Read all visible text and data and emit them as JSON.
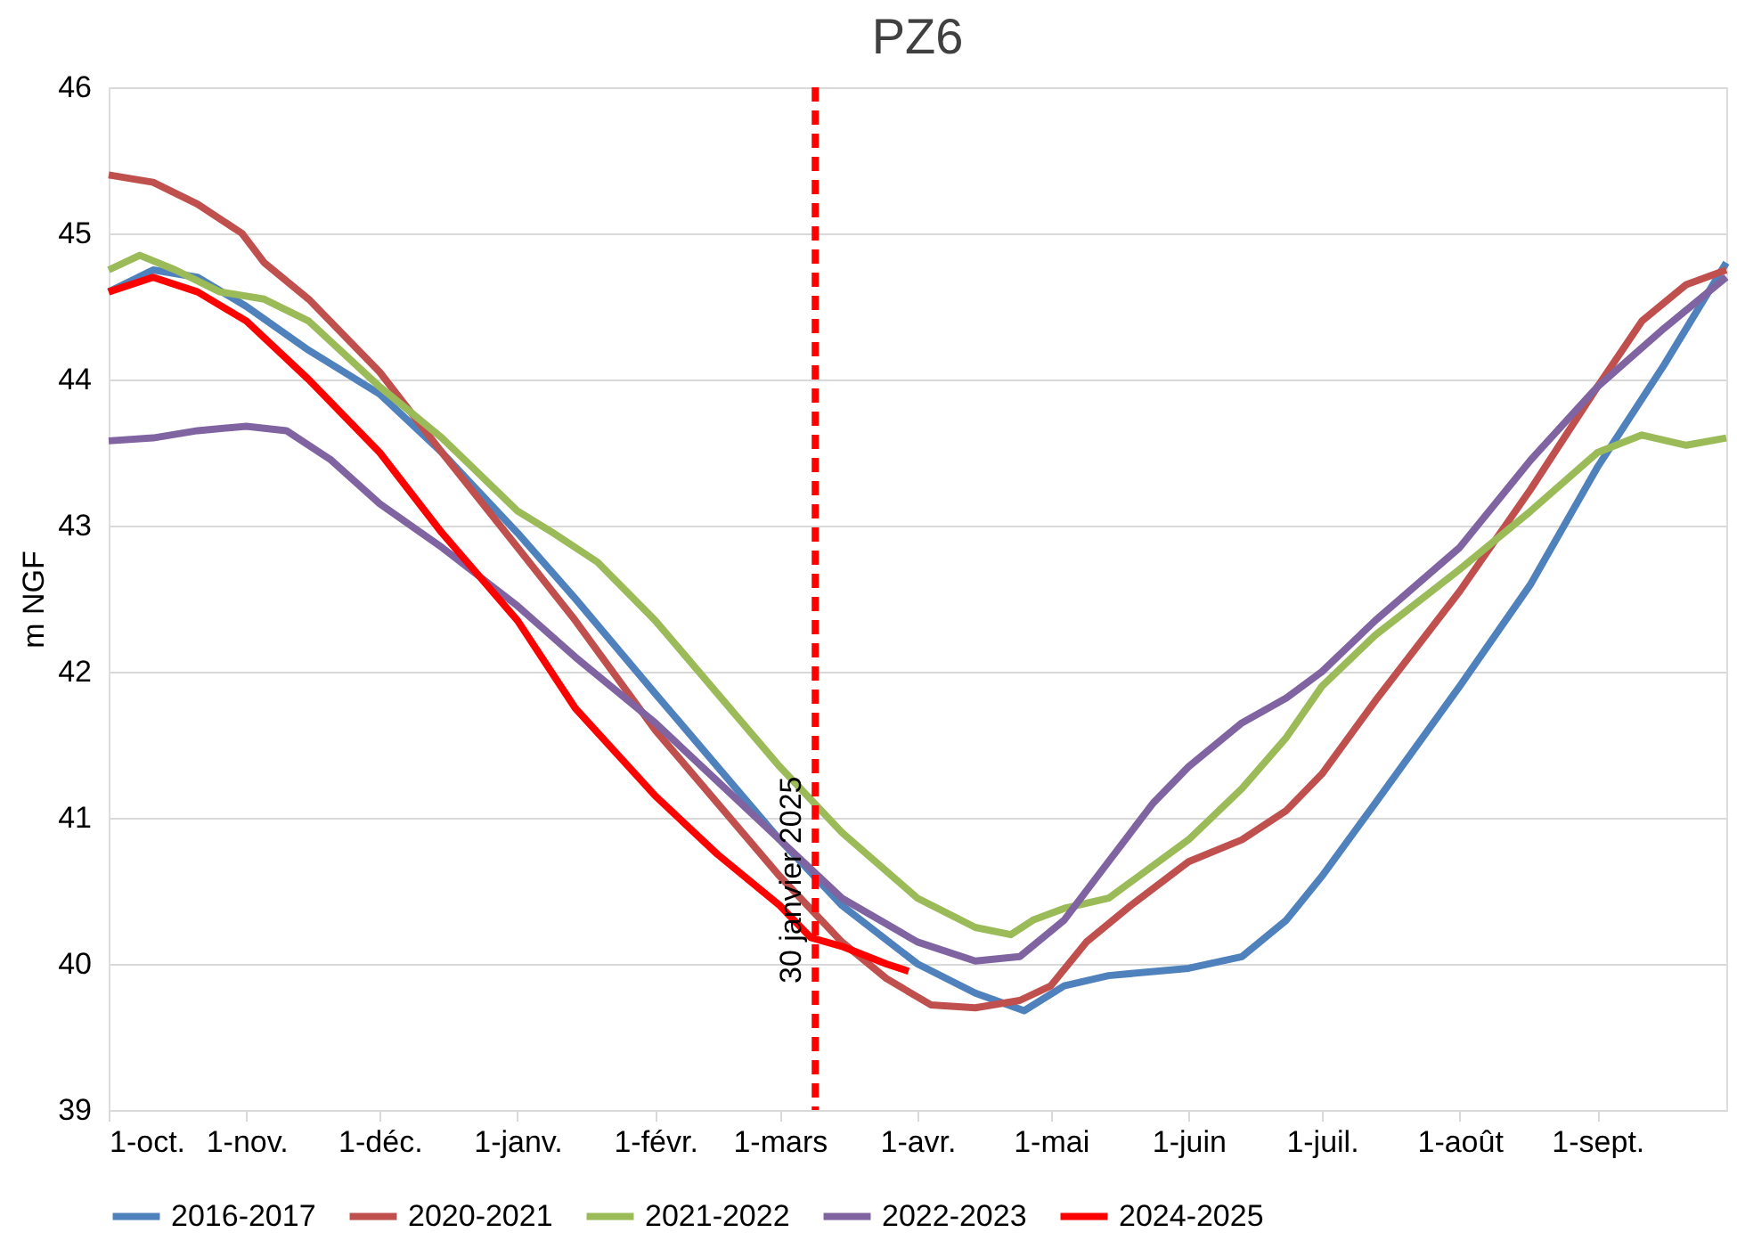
{
  "chart_data": {
    "type": "line",
    "title": "PZ6",
    "ylabel": "m NGF",
    "xlim": [
      "2024-10-01",
      "2025-09-30"
    ],
    "ylim": [
      39,
      46
    ],
    "yticks": [
      39,
      40,
      41,
      42,
      43,
      44,
      45,
      46
    ],
    "xticks": [
      {
        "value": "2024-10-01",
        "label": "1-oct."
      },
      {
        "value": "2024-11-01",
        "label": "1-nov."
      },
      {
        "value": "2024-12-01",
        "label": "1-déc."
      },
      {
        "value": "2025-01-01",
        "label": "1-janv."
      },
      {
        "value": "2025-02-01",
        "label": "1-févr."
      },
      {
        "value": "2025-03-01",
        "label": "1-mars"
      },
      {
        "value": "2025-04-01",
        "label": "1-avr."
      },
      {
        "value": "2025-05-01",
        "label": "1-mai"
      },
      {
        "value": "2025-06-01",
        "label": "1-juin"
      },
      {
        "value": "2025-07-01",
        "label": "1-juil."
      },
      {
        "value": "2025-08-01",
        "label": "1-août"
      },
      {
        "value": "2025-09-01",
        "label": "1-sept."
      }
    ],
    "grid": "y",
    "legend": "bottom",
    "marker": "none",
    "line_style": "solid",
    "ref_lines": [
      {
        "axis": "x",
        "value": "2025-03-09",
        "label": "30 janvier 2025",
        "color": "#ff0000",
        "line_style": "dashed"
      }
    ],
    "series": [
      {
        "name": "2016-2017",
        "color": "#4f81bd",
        "x": [
          "2024-10-01",
          "2024-10-11",
          "2024-10-21",
          "2024-11-01",
          "2024-11-15",
          "2024-12-01",
          "2024-12-15",
          "2025-01-01",
          "2025-01-14",
          "2025-02-01",
          "2025-02-15",
          "2025-03-01",
          "2025-03-15",
          "2025-04-01",
          "2025-04-14",
          "2025-04-25",
          "2025-05-04",
          "2025-05-14",
          "2025-06-01",
          "2025-06-13",
          "2025-06-23",
          "2025-07-01",
          "2025-07-13",
          "2025-08-01",
          "2025-08-17",
          "2025-09-01",
          "2025-09-16",
          "2025-09-30"
        ],
        "values": [
          44.6,
          44.75,
          44.7,
          44.5,
          44.2,
          43.9,
          43.5,
          42.95,
          42.5,
          41.85,
          41.35,
          40.85,
          40.4,
          40.0,
          39.8,
          39.68,
          39.85,
          39.92,
          39.97,
          40.05,
          40.3,
          40.6,
          41.1,
          41.9,
          42.6,
          43.4,
          44.1,
          44.8
        ]
      },
      {
        "name": "2020-2021",
        "color": "#c0504d",
        "x": [
          "2024-10-01",
          "2024-10-11",
          "2024-10-21",
          "2024-10-31",
          "2024-11-05",
          "2024-11-15",
          "2024-12-01",
          "2024-12-15",
          "2025-01-01",
          "2025-01-14",
          "2025-02-01",
          "2025-02-15",
          "2025-03-01",
          "2025-03-15",
          "2025-03-25",
          "2025-04-04",
          "2025-04-14",
          "2025-04-24",
          "2025-05-01",
          "2025-05-09",
          "2025-05-19",
          "2025-06-01",
          "2025-06-13",
          "2025-06-23",
          "2025-07-01",
          "2025-07-13",
          "2025-08-01",
          "2025-08-17",
          "2025-09-01",
          "2025-09-11",
          "2025-09-21",
          "2025-09-30"
        ],
        "values": [
          45.4,
          45.35,
          45.2,
          45.0,
          44.8,
          44.55,
          44.05,
          43.5,
          42.85,
          42.35,
          41.6,
          41.1,
          40.6,
          40.15,
          39.9,
          39.72,
          39.7,
          39.75,
          39.85,
          40.15,
          40.4,
          40.7,
          40.85,
          41.05,
          41.3,
          41.8,
          42.55,
          43.25,
          43.95,
          44.4,
          44.65,
          44.75
        ]
      },
      {
        "name": "2021-2022",
        "color": "#9bbb59",
        "x": [
          "2024-10-01",
          "2024-10-08",
          "2024-10-16",
          "2024-10-26",
          "2024-11-05",
          "2024-11-15",
          "2024-12-01",
          "2024-12-15",
          "2025-01-01",
          "2025-01-09",
          "2025-01-19",
          "2025-02-01",
          "2025-02-15",
          "2025-03-01",
          "2025-03-15",
          "2025-04-01",
          "2025-04-14",
          "2025-04-22",
          "2025-04-27",
          "2025-05-04",
          "2025-05-14",
          "2025-06-01",
          "2025-06-13",
          "2025-06-23",
          "2025-07-01",
          "2025-07-13",
          "2025-08-01",
          "2025-08-17",
          "2025-09-01",
          "2025-09-11",
          "2025-09-21",
          "2025-09-30"
        ],
        "values": [
          44.75,
          44.85,
          44.75,
          44.6,
          44.55,
          44.4,
          43.95,
          43.6,
          43.1,
          42.95,
          42.75,
          42.35,
          41.85,
          41.35,
          40.9,
          40.45,
          40.25,
          40.2,
          40.3,
          40.38,
          40.45,
          40.85,
          41.2,
          41.55,
          41.9,
          42.25,
          42.7,
          43.1,
          43.5,
          43.62,
          43.55,
          43.6
        ]
      },
      {
        "name": "2022-2023",
        "color": "#8064a2",
        "x": [
          "2024-10-01",
          "2024-10-11",
          "2024-10-21",
          "2024-11-01",
          "2024-11-10",
          "2024-11-20",
          "2024-12-01",
          "2024-12-15",
          "2025-01-01",
          "2025-01-14",
          "2025-02-01",
          "2025-02-15",
          "2025-03-01",
          "2025-03-15",
          "2025-04-01",
          "2025-04-14",
          "2025-04-24",
          "2025-05-04",
          "2025-05-14",
          "2025-05-24",
          "2025-06-01",
          "2025-06-13",
          "2025-06-23",
          "2025-07-01",
          "2025-07-13",
          "2025-08-01",
          "2025-08-17",
          "2025-09-01",
          "2025-09-16",
          "2025-09-30"
        ],
        "values": [
          43.58,
          43.6,
          43.65,
          43.68,
          43.65,
          43.45,
          43.15,
          42.85,
          42.45,
          42.1,
          41.65,
          41.25,
          40.85,
          40.45,
          40.15,
          40.02,
          40.05,
          40.3,
          40.7,
          41.1,
          41.35,
          41.65,
          41.82,
          42.0,
          42.35,
          42.85,
          43.45,
          43.95,
          44.35,
          44.7
        ]
      },
      {
        "name": "2024-2025",
        "color": "#ff0000",
        "x": [
          "2024-10-01",
          "2024-10-11",
          "2024-10-21",
          "2024-11-01",
          "2024-11-15",
          "2024-12-01",
          "2024-12-15",
          "2025-01-01",
          "2025-01-14",
          "2025-02-01",
          "2025-02-15",
          "2025-03-01",
          "2025-03-08",
          "2025-03-15",
          "2025-03-25",
          "2025-03-30"
        ],
        "values": [
          44.6,
          44.7,
          44.6,
          44.4,
          44.0,
          43.5,
          42.95,
          42.35,
          41.75,
          41.15,
          40.75,
          40.4,
          40.18,
          40.12,
          40.0,
          39.95
        ]
      }
    ]
  }
}
